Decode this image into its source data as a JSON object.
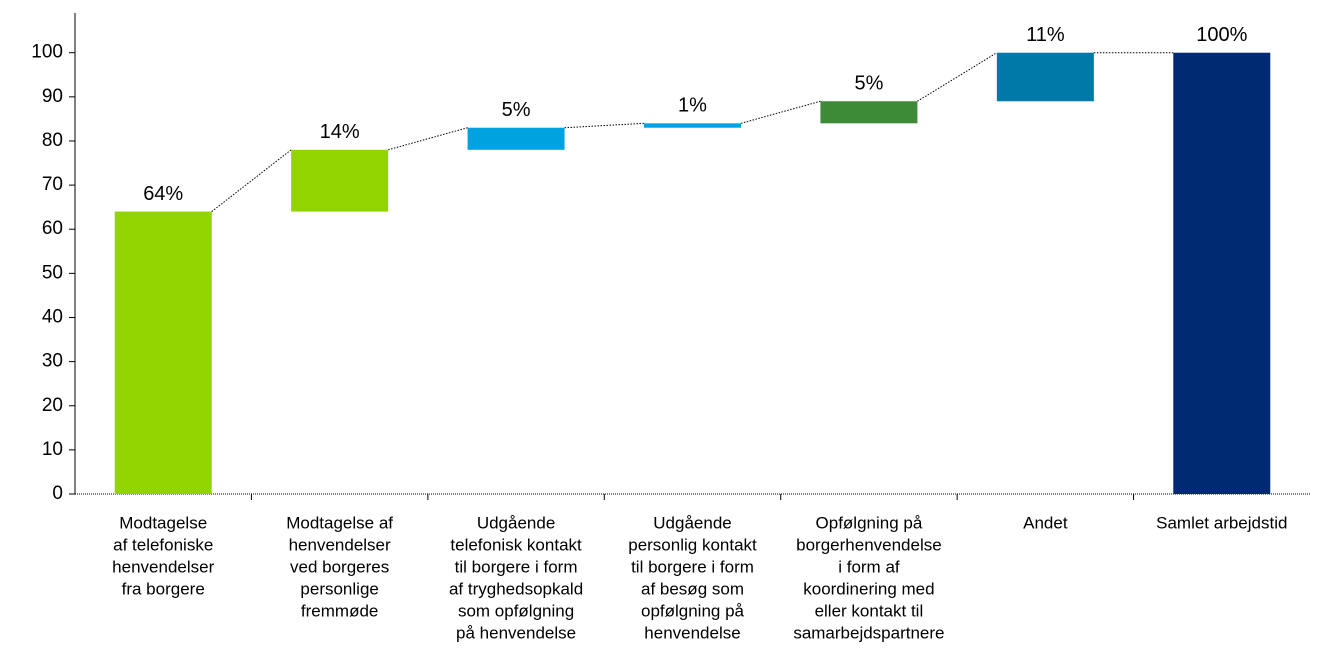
{
  "chart_data": {
    "type": "waterfall",
    "categories": [
      [
        "Modtagelse",
        "af telefoniske",
        "henvendelser",
        "fra borgere"
      ],
      [
        "Modtagelse af",
        "henvendelser",
        "ved borgeres",
        "personlige",
        "fremmøde"
      ],
      [
        "Udgående",
        "telefonisk kontakt",
        "til borgere i form",
        "af tryghedsopkald",
        "som opfølgning",
        "på henvendelse"
      ],
      [
        "Udgående",
        "personlig kontakt",
        "til borgere i form",
        "af besøg som",
        "opfølgning på",
        "henvendelse"
      ],
      [
        "Opfølgning på",
        "borgerhenvendelse",
        "i form af",
        "koordinering med",
        "eller kontakt til",
        "samarbejdspartnere"
      ],
      [
        "Andet"
      ],
      [
        "Samlet arbejdstid"
      ]
    ],
    "values": [
      64,
      14,
      5,
      1,
      5,
      11,
      100
    ],
    "value_labels": [
      "64%",
      "14%",
      "5%",
      "1%",
      "5%",
      "11%",
      "100%"
    ],
    "measure": [
      "relative",
      "relative",
      "relative",
      "relative",
      "relative",
      "relative",
      "total"
    ],
    "colors": [
      "#92d400",
      "#92d400",
      "#00a3e0",
      "#00a3e0",
      "#3d8b37",
      "#0079a8",
      "#002b73"
    ],
    "ylim": [
      0,
      109
    ],
    "yticks": [
      0,
      10,
      20,
      30,
      40,
      50,
      60,
      70,
      80,
      90,
      100
    ],
    "grid": false
  }
}
